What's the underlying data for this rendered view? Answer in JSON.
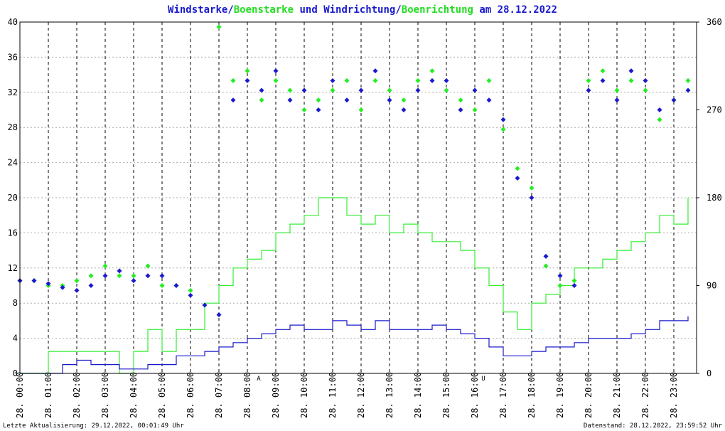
{
  "chart_data": {
    "type": "scatter",
    "title": [
      {
        "text": "Windstarke",
        "color": "#1a1acc"
      },
      {
        "text": "/",
        "color": "#1a1acc"
      },
      {
        "text": "Boenstarke",
        "color": "#22dd22"
      },
      {
        "text": " und ",
        "color": "#1a1acc"
      },
      {
        "text": "Windrichtung",
        "color": "#1a1acc"
      },
      {
        "text": "/",
        "color": "#1a1acc"
      },
      {
        "text": "Boenrichtung",
        "color": "#22dd22"
      },
      {
        "text": " am 28.12.2022",
        "color": "#1a1acc"
      }
    ],
    "footer_left": "Letzte Aktualisierung: 29.12.2022, 00:01:49 Uhr",
    "footer_right": "Datenstand: 28.12.2022, 23:59:52 Uhr",
    "annotations": [
      {
        "text": "A",
        "x": 8.4,
        "color": "#dd0000"
      },
      {
        "text": "U",
        "x": 16.3,
        "color": "#dd0000"
      }
    ],
    "x": [
      0,
      0.5,
      1,
      1.5,
      2,
      2.5,
      3,
      3.5,
      4,
      4.5,
      5,
      5.5,
      6,
      6.5,
      7,
      7.5,
      8,
      8.5,
      9,
      9.5,
      10,
      10.5,
      11,
      11.5,
      12,
      12.5,
      13,
      13.5,
      14,
      14.5,
      15,
      15.5,
      16,
      16.5,
      17,
      17.5,
      18,
      18.5,
      19,
      19.5,
      20,
      20.5,
      21,
      21.5,
      22,
      22.5,
      23,
      23.5
    ],
    "xlim": [
      0,
      23.8
    ],
    "xticks": [
      {
        "value": 0,
        "label": "28. 00:00"
      },
      {
        "value": 1,
        "label": "28. 01:00"
      },
      {
        "value": 2,
        "label": "28. 02:00"
      },
      {
        "value": 3,
        "label": "28. 03:00"
      },
      {
        "value": 4,
        "label": "28. 04:00"
      },
      {
        "value": 5,
        "label": "28. 05:00"
      },
      {
        "value": 6,
        "label": "28. 06:00"
      },
      {
        "value": 7,
        "label": "28. 07:00"
      },
      {
        "value": 8,
        "label": "28. 08:00"
      },
      {
        "value": 9,
        "label": "28. 09:00"
      },
      {
        "value": 10,
        "label": "28. 10:00"
      },
      {
        "value": 11,
        "label": "28. 11:00"
      },
      {
        "value": 12,
        "label": "28. 12:00"
      },
      {
        "value": 13,
        "label": "28. 13:00"
      },
      {
        "value": 14,
        "label": "28. 14:00"
      },
      {
        "value": 15,
        "label": "28. 15:00"
      },
      {
        "value": 16,
        "label": "28. 16:00"
      },
      {
        "value": 17,
        "label": "28. 17:00"
      },
      {
        "value": 18,
        "label": "28. 18:00"
      },
      {
        "value": 19,
        "label": "28. 19:00"
      },
      {
        "value": 20,
        "label": "28. 20:00"
      },
      {
        "value": 21,
        "label": "28. 21:00"
      },
      {
        "value": 22,
        "label": "28. 22:00"
      },
      {
        "value": 23,
        "label": "28. 23:00"
      }
    ],
    "ylim": [
      0,
      40
    ],
    "yticks": [
      0,
      4,
      8,
      12,
      16,
      20,
      24,
      28,
      32,
      36,
      40
    ],
    "y2lim": [
      0,
      360
    ],
    "y2ticks": [
      0,
      90,
      180,
      270,
      360
    ],
    "grid": true,
    "series": [
      {
        "name": "Boenstarke",
        "kind": "line",
        "color": "#33ee33",
        "values": [
          0,
          0,
          2.5,
          2.5,
          2.5,
          2.5,
          2.5,
          0,
          2.5,
          5,
          2.5,
          5,
          5,
          8,
          10,
          12,
          13,
          14,
          16,
          17,
          18,
          20,
          20,
          18,
          17,
          18,
          16,
          17,
          16,
          15,
          15,
          14,
          12,
          10,
          7,
          5,
          8,
          9,
          10,
          12,
          12,
          13,
          14,
          15,
          16,
          18,
          17,
          20
        ]
      },
      {
        "name": "Windstarke",
        "kind": "line",
        "color": "#1a1acc",
        "values": [
          0,
          0,
          0,
          1,
          1.5,
          1,
          1,
          0.5,
          0.5,
          1,
          1,
          2,
          2,
          2.5,
          3,
          3.5,
          4,
          4.5,
          5,
          5.5,
          5,
          5,
          6,
          5.5,
          5,
          6,
          5,
          5,
          5,
          5.5,
          5,
          4.5,
          4,
          3,
          2,
          2,
          2.5,
          3,
          3,
          3.5,
          4,
          4,
          4,
          4.5,
          5,
          6,
          6,
          6.5
        ]
      },
      {
        "name": "Boenrichtung",
        "kind": "points",
        "axis": "y2",
        "color": "#22ee22",
        "values": [
          95,
          95,
          90,
          90,
          95,
          100,
          110,
          100,
          100,
          110,
          90,
          90,
          85,
          70,
          355,
          300,
          310,
          280,
          300,
          290,
          270,
          280,
          290,
          300,
          270,
          300,
          290,
          280,
          300,
          310,
          290,
          280,
          270,
          300,
          250,
          210,
          190,
          110,
          90,
          95,
          300,
          310,
          290,
          300,
          290,
          260,
          280,
          300
        ]
      },
      {
        "name": "Windrichtung",
        "kind": "points",
        "axis": "y2",
        "color": "#1a1acc",
        "values": [
          95,
          95,
          92,
          88,
          85,
          90,
          100,
          105,
          95,
          100,
          100,
          90,
          80,
          70,
          60,
          280,
          300,
          290,
          310,
          280,
          290,
          270,
          300,
          280,
          290,
          310,
          280,
          270,
          290,
          300,
          300,
          270,
          290,
          280,
          260,
          200,
          180,
          120,
          100,
          90,
          290,
          300,
          280,
          310,
          300,
          270,
          280,
          290
        ]
      }
    ]
  }
}
